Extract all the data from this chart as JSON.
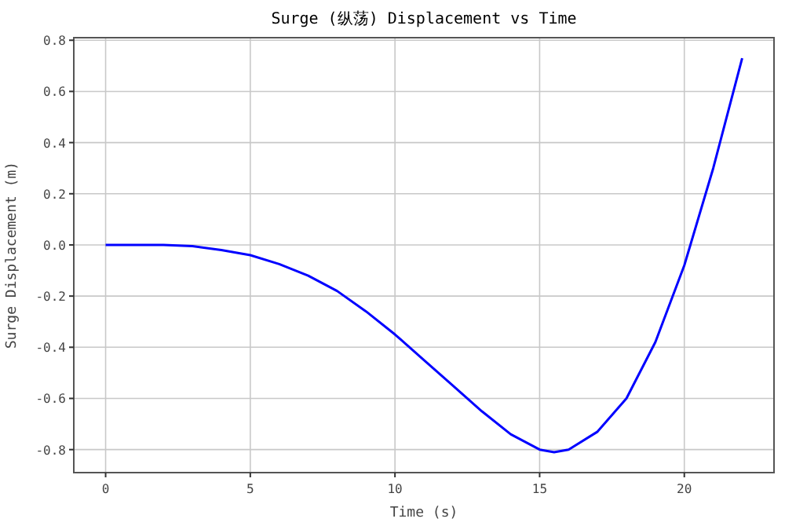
{
  "chart_data": {
    "type": "line",
    "title": "Surge (纵荡) Displacement vs Time",
    "xlabel": "Time (s)",
    "ylabel": "Surge Displacement (m)",
    "x": [
      0,
      1,
      2,
      3,
      4,
      5,
      6,
      7,
      8,
      9,
      10,
      11,
      12,
      13,
      14,
      15,
      15.5,
      16,
      17,
      18,
      19,
      20,
      21,
      22
    ],
    "series": [
      {
        "color": "#0000ff",
        "values": [
          0,
          0,
          0,
          -0.005,
          -0.02,
          -0.04,
          -0.075,
          -0.12,
          -0.18,
          -0.26,
          -0.35,
          -0.45,
          -0.55,
          -0.65,
          -0.74,
          -0.8,
          -0.81,
          -0.8,
          -0.73,
          -0.6,
          -0.38,
          -0.08,
          0.3,
          0.73
        ]
      }
    ],
    "xlim": [
      -1.1,
      23.1
    ],
    "xticks": [
      0,
      5,
      10,
      15,
      20
    ],
    "ylim": [
      -0.89,
      0.81
    ],
    "yticks": [
      {
        "value": -0.8,
        "label": "-0.8"
      },
      {
        "value": -0.6,
        "label": "-0.6"
      },
      {
        "value": -0.4,
        "label": "-0.4"
      },
      {
        "value": -0.2,
        "label": "-0.2"
      },
      {
        "value": 0,
        "label": "0.0"
      },
      {
        "value": 0.2,
        "label": "0.2"
      },
      {
        "value": 0.4,
        "label": "0.4"
      },
      {
        "value": 0.6,
        "label": "0.6"
      },
      {
        "value": 0.8,
        "label": "0.8"
      }
    ],
    "grid": true,
    "marker": "none",
    "line_style": "solid"
  }
}
